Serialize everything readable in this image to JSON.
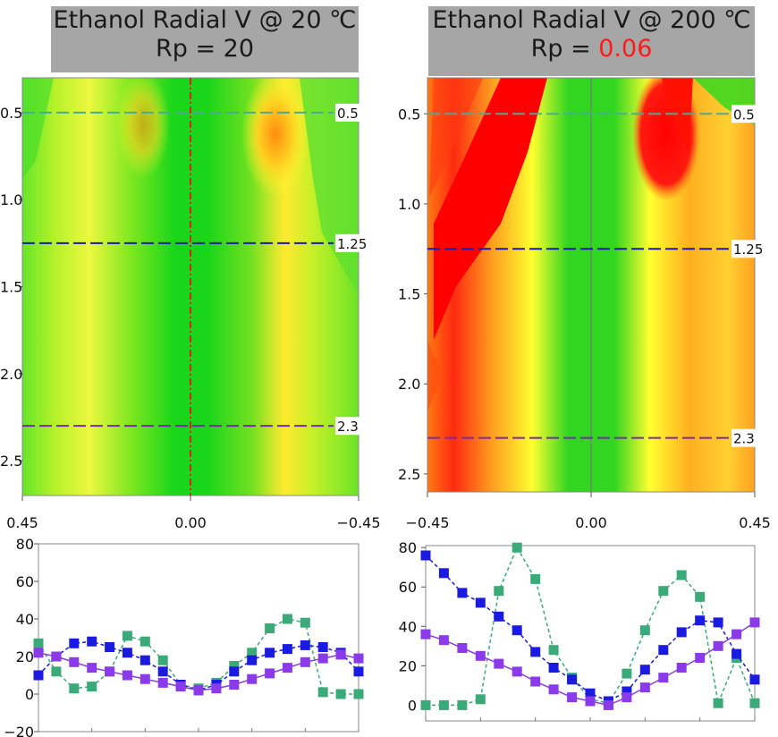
{
  "panels": [
    {
      "title_line1": "Ethanol Radial V @ 20 ℃",
      "title_line2_prefix": "Rp = ",
      "title_line2_value": "20",
      "rp_value_color": "#1a1a1a"
    },
    {
      "title_line1": "Ethanol Radial V @ 200 ℃",
      "title_line2_prefix": "Rp = ",
      "title_line2_value": "0.06",
      "rp_value_color": "#ff1a1a"
    }
  ],
  "colors": {
    "title_bg": "#a6a6a6",
    "contour_low": "#00e000",
    "contour_mid": "#ffff33",
    "contour_high": "#ff0000",
    "line_0_5": "#4aaa9a",
    "line_1_25": "#1a1aaa",
    "line_2_3": "#7a2aaa",
    "series_green": "#3aaa78",
    "series_blue": "#1a1ae0",
    "series_purple": "#8a3ae8",
    "centerline_20C": "#e02020",
    "centerline_200C": "#6a8a6a"
  },
  "chart_data": [
    {
      "type": "heatmap",
      "title": "Ethanol Radial V @ 20 ℃ Rp = 20",
      "x_ticks": [
        "0.45",
        "0.00",
        "−0.45"
      ],
      "xlim": [
        0.45,
        -0.45
      ],
      "y_ticks": [
        "0.5",
        "1.0",
        "1.5",
        "2.0",
        "2.5"
      ],
      "ylim": [
        2.7,
        0.3
      ],
      "y_inverted": true,
      "lines": [
        {
          "y": 0.5,
          "label": "0.5",
          "color": "#4aaa9a"
        },
        {
          "y": 1.25,
          "label": "1.25",
          "color": "#1a1aaa"
        },
        {
          "y": 2.3,
          "label": "2.3",
          "color": "#7a2aaa"
        }
      ],
      "centerline": {
        "x": 0.0,
        "style": "dash-dot",
        "color": "#e02020"
      }
    },
    {
      "type": "heatmap",
      "title": "Ethanol Radial V @ 200 ℃ Rp = 0.06",
      "x_ticks": [
        "−0.45",
        "0.00",
        "0.45"
      ],
      "xlim": [
        -0.45,
        0.45
      ],
      "y_ticks": [
        "0.5",
        "1.0",
        "1.5",
        "2.0",
        "2.5"
      ],
      "ylim": [
        2.6,
        0.3
      ],
      "y_inverted": true,
      "lines": [
        {
          "y": 0.5,
          "label": "0.5",
          "color": "#4aaa9a"
        },
        {
          "y": 1.25,
          "label": "1.25",
          "color": "#1a1aaa"
        },
        {
          "y": 2.3,
          "label": "2.3",
          "color": "#7a2aaa"
        }
      ],
      "centerline": {
        "x": 0.0,
        "style": "solid",
        "color": "#6a8a6a"
      }
    },
    {
      "type": "line",
      "x": [
        -0.45,
        -0.4,
        -0.35,
        -0.3,
        -0.25,
        -0.2,
        -0.15,
        -0.1,
        -0.05,
        0.0,
        0.05,
        0.1,
        0.15,
        0.2,
        0.25,
        0.3,
        0.35,
        0.4,
        0.45
      ],
      "xlim": [
        -0.45,
        0.45
      ],
      "ylim": [
        -20,
        80
      ],
      "y_ticks": [
        "80",
        "60",
        "40",
        "20",
        "0",
        "−20"
      ],
      "series": [
        {
          "values": [
            27,
            12,
            3,
            4,
            12,
            31,
            28,
            18,
            5,
            3,
            6,
            15,
            22,
            35,
            40,
            38,
            1,
            0,
            0
          ],
          "color": "#3aaa78"
        },
        {
          "values": [
            10,
            20,
            27,
            28,
            25,
            22,
            18,
            12,
            5,
            2,
            5,
            12,
            18,
            22,
            24,
            26,
            25,
            22,
            12
          ],
          "color": "#1a1ae0"
        },
        {
          "values": [
            22,
            20,
            17,
            14,
            12,
            10,
            8,
            6,
            4,
            2,
            3,
            5,
            8,
            11,
            14,
            17,
            19,
            21,
            19
          ],
          "color": "#8a3ae8"
        }
      ]
    },
    {
      "type": "line",
      "x": [
        -0.45,
        -0.4,
        -0.35,
        -0.3,
        -0.25,
        -0.2,
        -0.15,
        -0.1,
        -0.05,
        0.0,
        0.05,
        0.1,
        0.15,
        0.2,
        0.25,
        0.3,
        0.35,
        0.4,
        0.45
      ],
      "xlim": [
        -0.45,
        0.45
      ],
      "ylim": [
        -8,
        81
      ],
      "y_ticks": [
        "80",
        "60",
        "40",
        "20",
        "0"
      ],
      "series": [
        {
          "values": [
            0,
            0,
            0,
            3,
            58,
            80,
            64,
            28,
            14,
            3,
            1,
            16,
            38,
            58,
            66,
            55,
            1,
            24,
            1
          ],
          "color": "#3aaa78"
        },
        {
          "values": [
            76,
            67,
            57,
            52,
            45,
            38,
            27,
            19,
            13,
            6,
            2,
            7,
            18,
            28,
            37,
            43,
            42,
            26,
            13
          ],
          "color": "#1a1ae0"
        },
        {
          "values": [
            36,
            33,
            29,
            25,
            21,
            17,
            12,
            8,
            4,
            2,
            0,
            4,
            9,
            14,
            19,
            24,
            30,
            36,
            42
          ],
          "color": "#8a3ae8"
        }
      ]
    }
  ]
}
